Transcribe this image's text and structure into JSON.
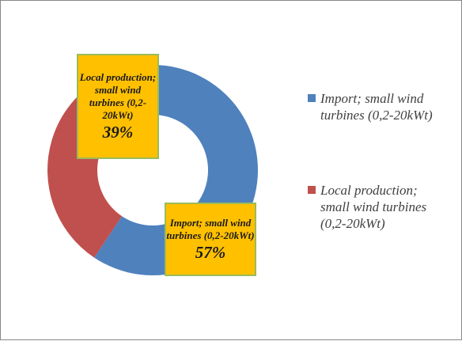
{
  "chart_data": {
    "type": "donut",
    "categories": [
      "Import; small wind turbines (0,2-20kWt)",
      "Local production; small wind turbines (0,2-20kWt)"
    ],
    "values": [
      57,
      39
    ],
    "value_labels": [
      "57%",
      "39%"
    ],
    "colors": [
      "#4f81bd",
      "#c0504d"
    ]
  }
}
